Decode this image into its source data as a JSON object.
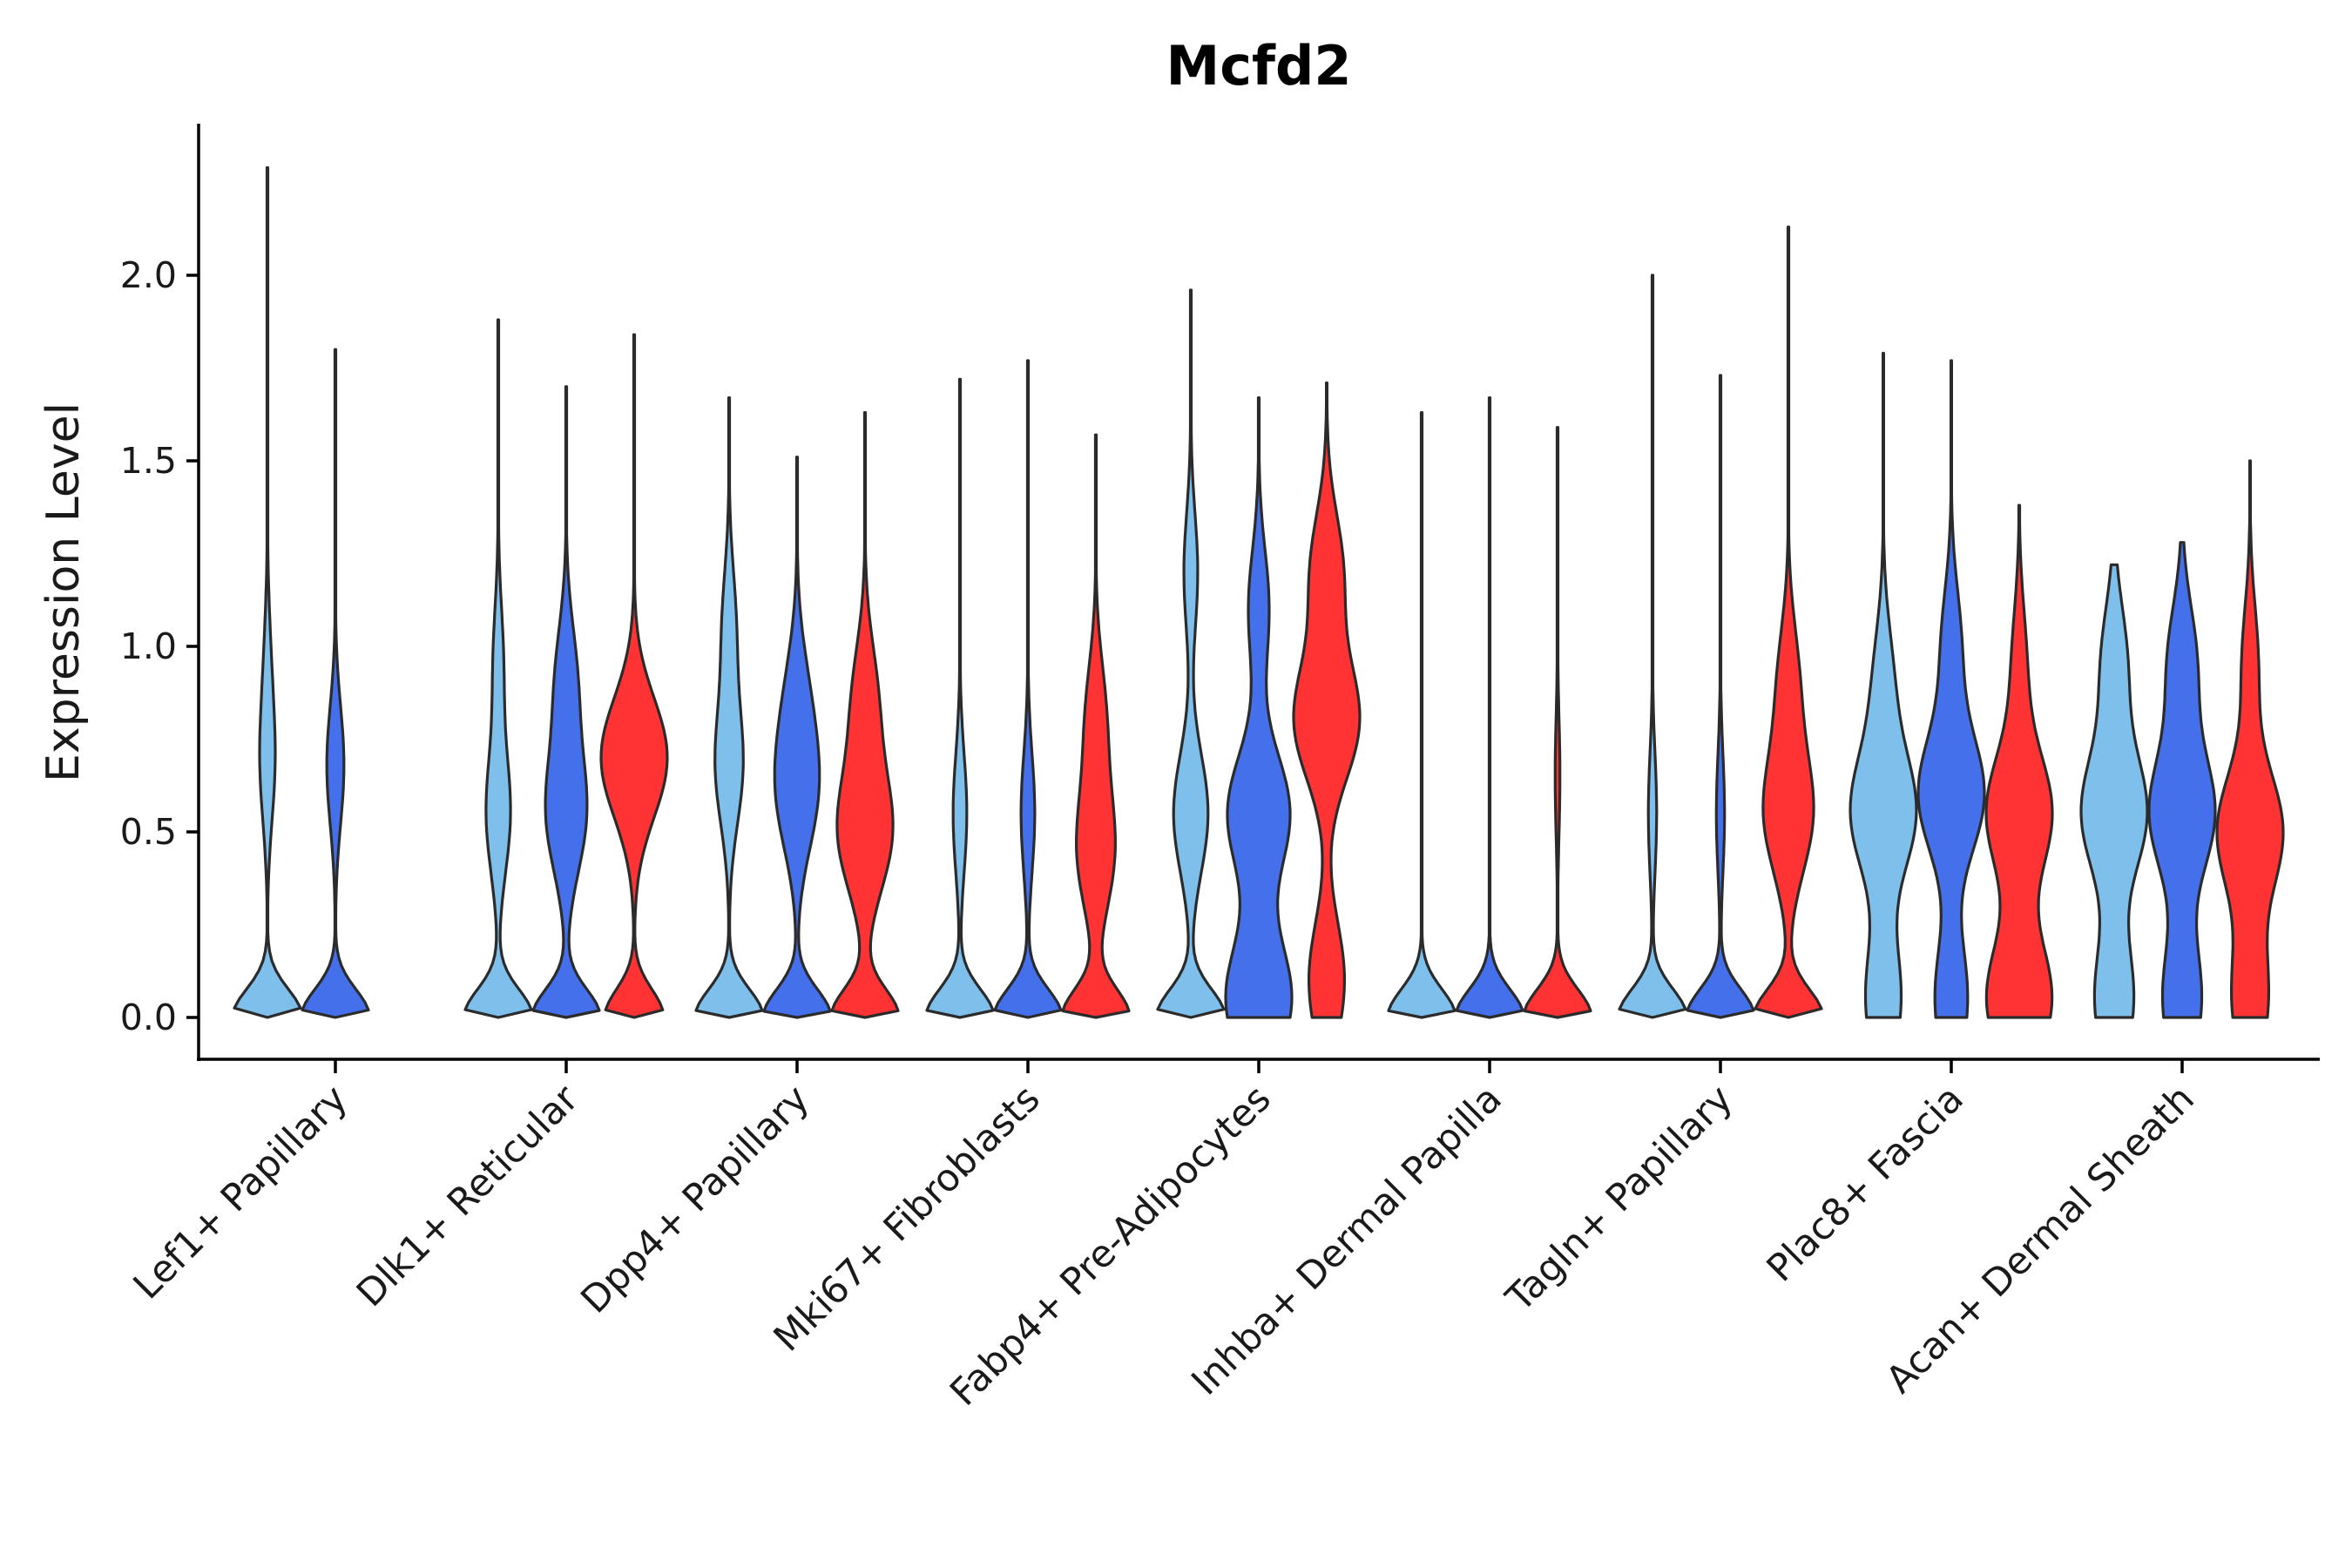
{
  "chart_data": {
    "type": "violin",
    "title": "Mcfd2",
    "xlabel": "",
    "ylabel": "Expression Level",
    "ylim": [
      -0.11,
      2.4
    ],
    "yticks": [
      "0.0",
      "0.5",
      "1.0",
      "1.5",
      "2.0"
    ],
    "grid": false,
    "legend": "none",
    "series_colors": [
      "#7fbfec",
      "#4570eb",
      "#ff3333"
    ],
    "categories": [
      "Lef1+ Papillary",
      "Dlk1+ Reticular",
      "Dpp4+ Papillary",
      "Mki67+ Fibroblasts",
      "Fabp4+ Pre-Adipocytes",
      "Inhba+ Dermal Papilla",
      "Tagln+ Papillary",
      "Plac8+ Fascia",
      "Acan+ Dermal Sheath"
    ],
    "violins": [
      {
        "category": 0,
        "series": 0,
        "max": 2.29,
        "floor": "tapered",
        "modes": [
          [
            0.0,
            1.0
          ],
          [
            0.68,
            0.2
          ],
          [
            0.95,
            0.08
          ]
        ]
      },
      {
        "category": 0,
        "series": 1,
        "max": 1.8,
        "floor": "tapered",
        "modes": [
          [
            0.0,
            1.0
          ],
          [
            0.68,
            0.25
          ]
        ]
      },
      {
        "category": 1,
        "series": 0,
        "max": 1.88,
        "floor": "tapered",
        "modes": [
          [
            0.0,
            1.0
          ],
          [
            0.55,
            0.35
          ],
          [
            0.95,
            0.15
          ]
        ]
      },
      {
        "category": 1,
        "series": 1,
        "max": 1.7,
        "floor": "tapered",
        "modes": [
          [
            0.0,
            0.95
          ],
          [
            0.55,
            0.55
          ],
          [
            0.9,
            0.3
          ]
        ]
      },
      {
        "category": 1,
        "series": 2,
        "max": 1.84,
        "floor": "tapered",
        "modes": [
          [
            0.0,
            0.85
          ],
          [
            0.7,
            0.95
          ]
        ]
      },
      {
        "category": 2,
        "series": 0,
        "max": 1.67,
        "floor": "tapered",
        "modes": [
          [
            0.0,
            1.0
          ],
          [
            0.68,
            0.4
          ],
          [
            1.05,
            0.2
          ]
        ]
      },
      {
        "category": 2,
        "series": 1,
        "max": 1.51,
        "floor": "tapered",
        "modes": [
          [
            0.0,
            1.0
          ],
          [
            0.6,
            0.55
          ],
          [
            0.85,
            0.3
          ]
        ]
      },
      {
        "category": 2,
        "series": 2,
        "max": 1.63,
        "floor": "tapered",
        "modes": [
          [
            0.0,
            0.95
          ],
          [
            0.5,
            0.75
          ],
          [
            0.85,
            0.35
          ]
        ]
      },
      {
        "category": 3,
        "series": 0,
        "max": 1.72,
        "floor": "tapered",
        "modes": [
          [
            0.0,
            1.0
          ],
          [
            0.55,
            0.2
          ]
        ]
      },
      {
        "category": 3,
        "series": 1,
        "max": 1.77,
        "floor": "tapered",
        "modes": [
          [
            0.0,
            1.0
          ],
          [
            0.55,
            0.2
          ]
        ]
      },
      {
        "category": 3,
        "series": 2,
        "max": 1.57,
        "floor": "tapered",
        "modes": [
          [
            0.0,
            1.0
          ],
          [
            0.45,
            0.55
          ],
          [
            0.8,
            0.3
          ]
        ]
      },
      {
        "category": 4,
        "series": 0,
        "max": 1.96,
        "floor": "tapered",
        "modes": [
          [
            0.0,
            1.0
          ],
          [
            0.55,
            0.5
          ],
          [
            1.2,
            0.2
          ]
        ]
      },
      {
        "category": 4,
        "series": 1,
        "max": 1.67,
        "floor": "flat",
        "modes": [
          [
            0.05,
            0.95
          ],
          [
            0.55,
            0.9
          ],
          [
            1.1,
            0.3
          ]
        ]
      },
      {
        "category": 4,
        "series": 2,
        "max": 1.71,
        "floor": "flat",
        "modes": [
          [
            0.1,
            0.55
          ],
          [
            0.8,
            1.0
          ],
          [
            1.2,
            0.5
          ]
        ]
      },
      {
        "category": 5,
        "series": 0,
        "max": 1.63,
        "floor": "tapered",
        "modes": [
          [
            0.0,
            1.0
          ]
        ]
      },
      {
        "category": 5,
        "series": 1,
        "max": 1.67,
        "floor": "tapered",
        "modes": [
          [
            0.0,
            1.0
          ]
        ]
      },
      {
        "category": 5,
        "series": 2,
        "max": 1.59,
        "floor": "tapered",
        "modes": [
          [
            0.0,
            1.0
          ],
          [
            0.65,
            0.07
          ]
        ]
      },
      {
        "category": 6,
        "series": 0,
        "max": 2.0,
        "floor": "tapered",
        "modes": [
          [
            0.0,
            1.0
          ],
          [
            0.55,
            0.12
          ]
        ]
      },
      {
        "category": 6,
        "series": 1,
        "max": 1.73,
        "floor": "tapered",
        "modes": [
          [
            0.0,
            1.0
          ],
          [
            0.55,
            0.12
          ]
        ]
      },
      {
        "category": 6,
        "series": 2,
        "max": 2.13,
        "floor": "tapered",
        "modes": [
          [
            0.0,
            1.0
          ],
          [
            0.55,
            0.7
          ],
          [
            0.9,
            0.3
          ]
        ]
      },
      {
        "category": 7,
        "series": 0,
        "max": 1.79,
        "floor": "flat",
        "modes": [
          [
            0.05,
            0.55
          ],
          [
            0.55,
            1.0
          ],
          [
            0.9,
            0.3
          ]
        ]
      },
      {
        "category": 7,
        "series": 1,
        "max": 1.77,
        "floor": "flat",
        "modes": [
          [
            0.05,
            0.5
          ],
          [
            0.6,
            1.0
          ],
          [
            1.0,
            0.3
          ]
        ]
      },
      {
        "category": 7,
        "series": 2,
        "max": 1.38,
        "floor": "flat",
        "modes": [
          [
            0.05,
            0.9
          ],
          [
            0.55,
            0.9
          ],
          [
            0.95,
            0.2
          ]
        ]
      },
      {
        "category": 8,
        "series": 0,
        "max": 1.22,
        "floor": "flat",
        "modes": [
          [
            0.05,
            0.6
          ],
          [
            0.55,
            1.0
          ],
          [
            0.95,
            0.4
          ]
        ]
      },
      {
        "category": 8,
        "series": 1,
        "max": 1.28,
        "floor": "flat",
        "modes": [
          [
            0.05,
            0.6
          ],
          [
            0.55,
            1.0
          ],
          [
            0.95,
            0.45
          ]
        ]
      },
      {
        "category": 8,
        "series": 2,
        "max": 1.5,
        "floor": "flat",
        "modes": [
          [
            0.05,
            0.55
          ],
          [
            0.5,
            1.0
          ],
          [
            0.95,
            0.25
          ]
        ]
      }
    ]
  }
}
